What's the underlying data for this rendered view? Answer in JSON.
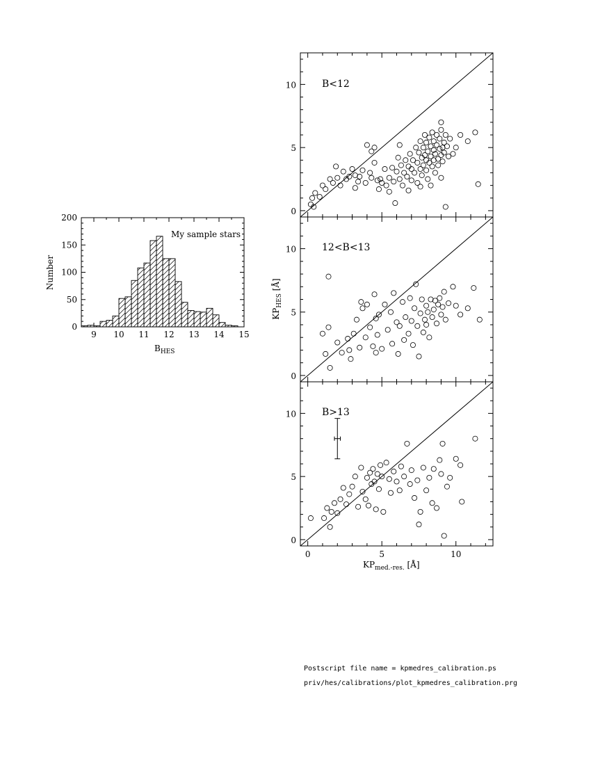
{
  "footer": {
    "line1": "Postscript file name = kpmedres_calibration.ps",
    "line2": "priv/hes/calibrations/plot_kpmedres_calibration.prg"
  },
  "chart_data": [
    {
      "type": "bar",
      "title": "",
      "annotation": "My sample stars",
      "xlabel": "B",
      "xlabel_sub": "HES",
      "ylabel": "Number",
      "xlim": [
        8.5,
        15
      ],
      "ylim": [
        0,
        200
      ],
      "xticks": [
        9,
        10,
        11,
        12,
        13,
        14,
        15
      ],
      "yticks": [
        0,
        50,
        100,
        150,
        200
      ],
      "bin_width": 0.25,
      "hatch": "diagonal",
      "bins_left": [
        8.5,
        8.75,
        9.0,
        9.25,
        9.5,
        9.75,
        10.0,
        10.25,
        10.5,
        10.75,
        11.0,
        11.25,
        11.5,
        11.75,
        12.0,
        12.25,
        12.5,
        12.75,
        13.0,
        13.25,
        13.5,
        13.75,
        14.0,
        14.25,
        14.5,
        14.75
      ],
      "values": [
        2,
        3,
        2,
        10,
        12,
        20,
        52,
        55,
        85,
        108,
        117,
        158,
        166,
        125,
        125,
        83,
        45,
        30,
        28,
        27,
        34,
        22,
        8,
        3,
        2,
        0
      ]
    },
    {
      "type": "scatter",
      "panel": "B<12",
      "label": "B<12",
      "xlim": [
        -0.5,
        12.5
      ],
      "ylim": [
        -0.5,
        12.5
      ],
      "xticks": [
        0,
        5,
        10
      ],
      "yticks": [
        0,
        5,
        10
      ],
      "identity_line": true,
      "sampled": true,
      "points": [
        [
          0.2,
          0.5
        ],
        [
          0.3,
          1.0
        ],
        [
          0.4,
          0.3
        ],
        [
          0.5,
          1.4
        ],
        [
          0.8,
          1.1
        ],
        [
          1.0,
          2.0
        ],
        [
          1.2,
          1.7
        ],
        [
          1.5,
          2.5
        ],
        [
          1.7,
          2.2
        ],
        [
          1.9,
          3.5
        ],
        [
          2.0,
          2.6
        ],
        [
          2.2,
          2.0
        ],
        [
          2.4,
          3.1
        ],
        [
          2.6,
          2.5
        ],
        [
          2.8,
          2.7
        ],
        [
          3.0,
          3.3
        ],
        [
          3.2,
          2.8
        ],
        [
          3.4,
          2.3
        ],
        [
          3.5,
          2.7
        ],
        [
          3.7,
          3.2
        ],
        [
          3.9,
          2.2
        ],
        [
          4.0,
          5.2
        ],
        [
          4.2,
          3.0
        ],
        [
          4.3,
          2.6
        ],
        [
          4.5,
          3.8
        ],
        [
          4.5,
          5.0
        ],
        [
          4.7,
          2.4
        ],
        [
          4.8,
          1.7
        ],
        [
          4.9,
          2.5
        ],
        [
          5.0,
          2.2
        ],
        [
          5.2,
          3.3
        ],
        [
          5.3,
          2.0
        ],
        [
          5.5,
          2.6
        ],
        [
          5.7,
          3.4
        ],
        [
          5.8,
          2.3
        ],
        [
          5.9,
          0.6
        ],
        [
          6.0,
          3.1
        ],
        [
          6.1,
          4.2
        ],
        [
          6.2,
          2.5
        ],
        [
          6.3,
          3.6
        ],
        [
          6.4,
          2.0
        ],
        [
          6.5,
          3.0
        ],
        [
          6.6,
          4.0
        ],
        [
          6.7,
          2.7
        ],
        [
          6.8,
          3.5
        ],
        [
          6.9,
          4.5
        ],
        [
          7.0,
          2.4
        ],
        [
          7.0,
          3.3
        ],
        [
          7.1,
          4.0
        ],
        [
          7.2,
          3.0
        ],
        [
          7.3,
          5.0
        ],
        [
          7.4,
          2.2
        ],
        [
          7.4,
          3.8
        ],
        [
          7.5,
          4.6
        ],
        [
          7.6,
          3.3
        ],
        [
          7.6,
          5.5
        ],
        [
          7.7,
          2.8
        ],
        [
          7.7,
          4.2
        ],
        [
          7.8,
          3.6
        ],
        [
          7.8,
          5.0
        ],
        [
          7.9,
          4.4
        ],
        [
          7.9,
          6.0
        ],
        [
          8.0,
          3.2
        ],
        [
          8.0,
          4.0
        ],
        [
          8.0,
          5.4
        ],
        [
          8.1,
          4.7
        ],
        [
          8.1,
          2.5
        ],
        [
          8.2,
          3.8
        ],
        [
          8.2,
          5.8
        ],
        [
          8.3,
          4.3
        ],
        [
          8.3,
          5.1
        ],
        [
          8.4,
          3.5
        ],
        [
          8.4,
          6.2
        ],
        [
          8.5,
          4.8
        ],
        [
          8.5,
          4.0
        ],
        [
          8.5,
          5.5
        ],
        [
          8.6,
          3.0
        ],
        [
          8.6,
          4.5
        ],
        [
          8.7,
          5.2
        ],
        [
          8.7,
          6.0
        ],
        [
          8.8,
          4.1
        ],
        [
          8.8,
          3.6
        ],
        [
          8.9,
          4.9
        ],
        [
          8.9,
          5.7
        ],
        [
          9.0,
          4.4
        ],
        [
          9.0,
          6.4
        ],
        [
          9.1,
          5.0
        ],
        [
          9.1,
          3.9
        ],
        [
          9.2,
          5.4
        ],
        [
          9.2,
          4.6
        ],
        [
          9.3,
          6.0
        ],
        [
          9.3,
          0.3
        ],
        [
          9.4,
          5.1
        ],
        [
          9.5,
          4.3
        ],
        [
          9.6,
          5.7
        ],
        [
          9.8,
          4.5
        ],
        [
          10.0,
          5.0
        ],
        [
          10.3,
          6.0
        ],
        [
          10.8,
          5.5
        ],
        [
          11.3,
          6.2
        ],
        [
          11.5,
          2.1
        ],
        [
          9.0,
          7.0
        ],
        [
          6.8,
          1.6
        ],
        [
          7.6,
          1.9
        ],
        [
          5.5,
          1.5
        ],
        [
          3.2,
          1.8
        ],
        [
          8.3,
          2.0
        ],
        [
          9.0,
          2.6
        ],
        [
          4.3,
          4.7
        ],
        [
          6.2,
          5.2
        ]
      ]
    },
    {
      "type": "scatter",
      "panel": "12<B<13",
      "label": "12<B<13",
      "ylabel": "KP",
      "ylabel_sub": "HES",
      "ylabel_unit": " [Å]",
      "xlim": [
        -0.5,
        12.5
      ],
      "ylim": [
        -0.5,
        12.5
      ],
      "xticks": [
        0,
        5,
        10
      ],
      "yticks": [
        0,
        5,
        10
      ],
      "identity_line": true,
      "sampled": true,
      "points": [
        [
          1.0,
          3.3
        ],
        [
          1.2,
          1.7
        ],
        [
          1.4,
          7.8
        ],
        [
          1.4,
          3.8
        ],
        [
          1.5,
          0.6
        ],
        [
          2.0,
          2.6
        ],
        [
          2.3,
          1.8
        ],
        [
          2.7,
          2.9
        ],
        [
          2.9,
          1.3
        ],
        [
          3.1,
          3.3
        ],
        [
          3.3,
          4.4
        ],
        [
          3.5,
          2.2
        ],
        [
          3.7,
          5.3
        ],
        [
          3.9,
          3.0
        ],
        [
          4.0,
          5.6
        ],
        [
          4.2,
          3.8
        ],
        [
          4.4,
          2.3
        ],
        [
          4.5,
          6.4
        ],
        [
          4.6,
          4.5
        ],
        [
          4.6,
          1.8
        ],
        [
          4.7,
          3.2
        ],
        [
          4.8,
          4.8
        ],
        [
          5.0,
          2.1
        ],
        [
          5.2,
          5.6
        ],
        [
          5.4,
          3.6
        ],
        [
          5.6,
          5.0
        ],
        [
          5.7,
          2.5
        ],
        [
          5.8,
          6.5
        ],
        [
          6.0,
          4.2
        ],
        [
          6.1,
          1.7
        ],
        [
          6.2,
          3.9
        ],
        [
          6.4,
          5.8
        ],
        [
          6.5,
          2.8
        ],
        [
          6.6,
          4.6
        ],
        [
          6.8,
          3.3
        ],
        [
          6.9,
          6.1
        ],
        [
          7.0,
          4.3
        ],
        [
          7.1,
          2.4
        ],
        [
          7.2,
          5.3
        ],
        [
          7.3,
          7.2
        ],
        [
          7.4,
          3.9
        ],
        [
          7.5,
          1.5
        ],
        [
          7.6,
          4.9
        ],
        [
          7.7,
          6.0
        ],
        [
          7.8,
          3.4
        ],
        [
          7.9,
          4.4
        ],
        [
          8.0,
          5.5
        ],
        [
          8.0,
          4.0
        ],
        [
          8.1,
          5.0
        ],
        [
          8.2,
          3.0
        ],
        [
          8.3,
          6.0
        ],
        [
          8.4,
          4.6
        ],
        [
          8.5,
          5.2
        ],
        [
          8.6,
          5.9
        ],
        [
          8.7,
          4.1
        ],
        [
          8.8,
          5.6
        ],
        [
          8.9,
          6.1
        ],
        [
          9.0,
          4.8
        ],
        [
          9.1,
          5.4
        ],
        [
          9.2,
          6.6
        ],
        [
          9.3,
          4.4
        ],
        [
          9.5,
          5.7
        ],
        [
          9.8,
          7.0
        ],
        [
          10.0,
          5.5
        ],
        [
          10.3,
          4.8
        ],
        [
          10.8,
          5.3
        ],
        [
          11.2,
          6.9
        ],
        [
          11.6,
          4.4
        ],
        [
          2.8,
          2.0
        ],
        [
          3.6,
          5.8
        ]
      ]
    },
    {
      "type": "scatter",
      "panel": "B>13",
      "label": "B>13",
      "xlabel": "KP",
      "xlabel_sub": "med.-res.",
      "xlabel_unit": " [Å]",
      "xlim": [
        -0.5,
        12.5
      ],
      "ylim": [
        -0.5,
        12.5
      ],
      "xticks": [
        0,
        5,
        10
      ],
      "yticks": [
        0,
        5,
        10
      ],
      "identity_line": true,
      "error_bar": {
        "x": 2.0,
        "y": 8.0,
        "ylow": 6.4,
        "yhigh": 9.6,
        "xerr": 0.2
      },
      "sampled": true,
      "points": [
        [
          0.2,
          1.7
        ],
        [
          1.1,
          1.7
        ],
        [
          1.3,
          2.5
        ],
        [
          1.5,
          1.0
        ],
        [
          1.6,
          2.2
        ],
        [
          1.8,
          2.9
        ],
        [
          2.0,
          2.1
        ],
        [
          2.2,
          3.2
        ],
        [
          2.4,
          4.1
        ],
        [
          2.6,
          2.8
        ],
        [
          2.8,
          3.6
        ],
        [
          3.0,
          4.2
        ],
        [
          3.2,
          5.0
        ],
        [
          3.4,
          2.6
        ],
        [
          3.6,
          5.7
        ],
        [
          3.7,
          3.8
        ],
        [
          3.9,
          3.2
        ],
        [
          4.0,
          4.9
        ],
        [
          4.1,
          2.7
        ],
        [
          4.2,
          5.3
        ],
        [
          4.3,
          4.4
        ],
        [
          4.4,
          5.6
        ],
        [
          4.5,
          4.6
        ],
        [
          4.6,
          2.4
        ],
        [
          4.7,
          5.2
        ],
        [
          4.8,
          4.0
        ],
        [
          4.9,
          5.9
        ],
        [
          5.0,
          5.0
        ],
        [
          5.1,
          2.2
        ],
        [
          5.3,
          6.1
        ],
        [
          5.5,
          4.8
        ],
        [
          5.6,
          3.7
        ],
        [
          5.8,
          5.4
        ],
        [
          6.0,
          4.6
        ],
        [
          6.2,
          3.9
        ],
        [
          6.3,
          5.8
        ],
        [
          6.5,
          5.0
        ],
        [
          6.7,
          7.6
        ],
        [
          6.9,
          4.4
        ],
        [
          7.0,
          5.5
        ],
        [
          7.2,
          3.3
        ],
        [
          7.4,
          4.7
        ],
        [
          7.5,
          1.2
        ],
        [
          7.6,
          2.2
        ],
        [
          7.8,
          5.7
        ],
        [
          8.0,
          3.9
        ],
        [
          8.2,
          4.9
        ],
        [
          8.4,
          2.9
        ],
        [
          8.5,
          5.6
        ],
        [
          8.7,
          2.5
        ],
        [
          8.9,
          6.3
        ],
        [
          9.0,
          5.2
        ],
        [
          9.1,
          7.6
        ],
        [
          9.2,
          0.3
        ],
        [
          9.4,
          4.2
        ],
        [
          9.6,
          4.9
        ],
        [
          10.0,
          6.4
        ],
        [
          10.3,
          5.9
        ],
        [
          10.4,
          3.0
        ],
        [
          11.3,
          8.0
        ]
      ]
    }
  ]
}
